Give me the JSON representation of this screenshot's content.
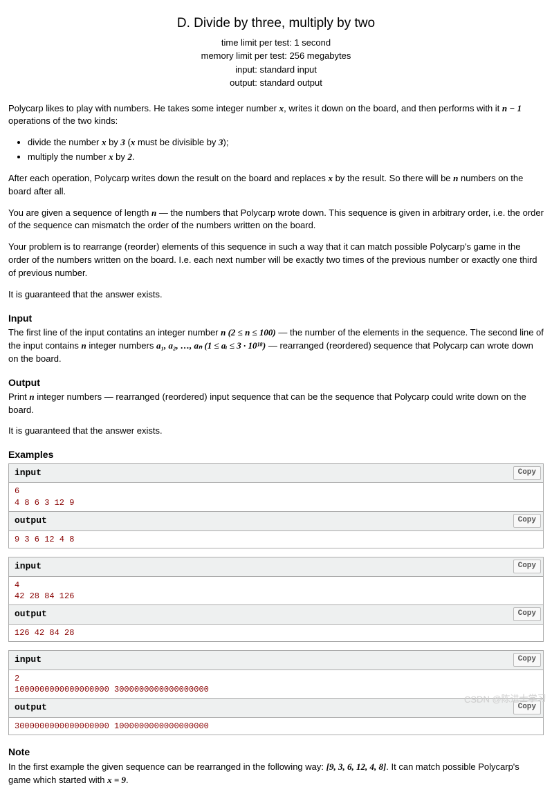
{
  "title": "D. Divide by three, multiply by two",
  "limits": {
    "time": "time limit per test: 1 second",
    "memory": "memory limit per test: 256 megabytes",
    "input": "input: standard input",
    "output": "output: standard output"
  },
  "intro_a": "Polycarp likes to play with numbers. He takes some integer number ",
  "intro_b": ", writes it down on the board, and then performs with it ",
  "intro_c": " operations of the two kinds:",
  "bullet1_a": "divide the number ",
  "bullet1_b": " by ",
  "bullet1_c": " (",
  "bullet1_d": " must be divisible by ",
  "bullet1_e": ");",
  "bullet2_a": "multiply the number ",
  "bullet2_b": " by ",
  "bullet2_c": ".",
  "para2_a": "After each operation, Polycarp writes down the result on the board and replaces ",
  "para2_b": " by the result. So there will be ",
  "para2_c": " numbers on the board after all.",
  "para3_a": "You are given a sequence of length ",
  "para3_b": " — the numbers that Polycarp wrote down. This sequence is given in arbitrary order, i.e. the order of the sequence can mismatch the order of the numbers written on the board.",
  "para4": "Your problem is to rearrange (reorder) elements of this sequence in such a way that it can match possible Polycarp's game in the order of the numbers written on the board. I.e. each next number will be exactly two times of the previous number or exactly one third of previous number.",
  "para5": "It is guaranteed that the answer exists.",
  "input_heading": "Input",
  "input_text_a": "The first line of the input contatins an integer number ",
  "input_text_b": " — the number of the elements in the sequence. The second line of the input contains ",
  "input_text_c": " integer numbers ",
  "input_text_d": " — rearranged (reordered) sequence that Polycarp can wrote down on the board.",
  "output_heading": "Output",
  "output_text_a": "Print ",
  "output_text_b": " integer numbers — rearranged (reordered) input sequence that can be the sequence that Polycarp could write down on the board.",
  "output_text_c": "It is guaranteed that the answer exists.",
  "examples_heading": "Examples",
  "io": {
    "input_label": "input",
    "output_label": "output",
    "copy_label": "Copy"
  },
  "ex1_in": "6\n4 8 6 3 12 9",
  "ex1_out": "9 3 6 12 4 8",
  "ex2_in": "4\n42 28 84 126",
  "ex2_out": "126 42 84 28",
  "ex3_in": "2\n1000000000000000000 3000000000000000000",
  "ex3_out": "3000000000000000000 1000000000000000000",
  "note_heading": "Note",
  "note_a": "In the first example the given sequence can be rearranged in the following way: ",
  "note_b": ". It can match possible Polycarp's game which started with ",
  "note_c": ".",
  "math": {
    "x": "x",
    "n_minus_1": "n − 1",
    "three": "3",
    "two": "2",
    "n": "n",
    "n_range": "n (2 ≤ n ≤ 100)",
    "a_seq": "a₁, a₂, …, aₙ (1 ≤ aᵢ ≤ 3 · 10¹⁸)",
    "note_seq": "[9, 3, 6, 12, 4, 8]",
    "x_eq_9": "x = 9"
  },
  "watermark": "CSDN @陈进士学习"
}
